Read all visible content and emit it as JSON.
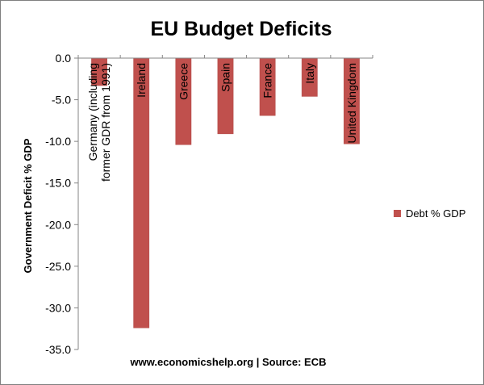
{
  "chart_data": {
    "type": "bar",
    "title": "EU Budget Deficits",
    "ylabel": "Government Deficit % GDP",
    "xlabel": "www.economicshelp.org | Source: ECB",
    "categories": [
      [
        "Germany (including",
        "former GDR from 1991)"
      ],
      [
        "Ireland"
      ],
      [
        "Greece"
      ],
      [
        "Spain"
      ],
      [
        "France"
      ],
      [
        "Italy"
      ],
      [
        "United Kingdom"
      ]
    ],
    "series": [
      {
        "name": "Debt % GDP",
        "values": [
          -3.3,
          -32.4,
          -10.4,
          -9.1,
          -6.9,
          -4.6,
          -10.3
        ]
      }
    ],
    "ylim": [
      -35,
      0
    ],
    "yticks": [
      "0.0",
      "-5.0",
      "-10.0",
      "-15.0",
      "-20.0",
      "-25.0",
      "-30.0",
      "-35.0"
    ],
    "ytick_values": [
      0,
      -5,
      -10,
      -15,
      -20,
      -25,
      -30,
      -35
    ],
    "grid": false,
    "legend": "right",
    "colors": {
      "bar": "#c0504d",
      "bar_edge": "#b24a47",
      "axis": "#868686"
    }
  }
}
